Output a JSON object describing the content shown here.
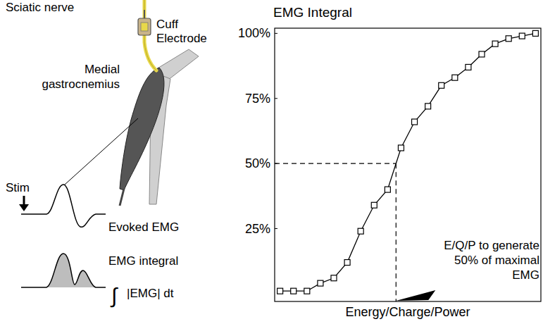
{
  "chart_data": {
    "type": "line",
    "ylabel": "EMG Integral",
    "xlabel": "Energy/Charge/Power",
    "x": [
      1,
      2,
      3,
      4,
      5,
      6,
      7,
      8,
      9,
      10,
      11,
      12,
      13,
      14,
      15,
      16,
      17,
      18,
      19,
      20
    ],
    "values": [
      1,
      1,
      1,
      4,
      6,
      12,
      24,
      34,
      40,
      56,
      66,
      72,
      80,
      83,
      87,
      92,
      96,
      98,
      99,
      100
    ],
    "color": "#000000",
    "marker": "square",
    "line_style": "solid",
    "xlim": [
      0.6,
      20.4
    ],
    "ylim": [
      -3,
      102
    ],
    "xticks": [],
    "yticks": [
      {
        "value": 25,
        "label": "25%"
      },
      {
        "value": 50,
        "label": "50%"
      },
      {
        "value": 75,
        "label": "75%"
      },
      {
        "value": 100,
        "label": "100%"
      }
    ],
    "tick_labels": "y",
    "grid": false,
    "annotation": {
      "y": 50,
      "lines": [
        "E/Q/P to generate",
        "50% of maximal",
        "EMG"
      ]
    }
  },
  "diagram": {
    "sciatic_nerve": "Sciatic nerve",
    "cuff_electrode": [
      "Cuff",
      "Electrode"
    ],
    "muscle": [
      "Medial",
      "gastrocnemius"
    ],
    "stim": "Stim",
    "evoked_emg": "Evoked EMG",
    "emg_integral": "EMG integral",
    "formula": {
      "symbol": "∫",
      "body": "|EMG| dt"
    }
  }
}
